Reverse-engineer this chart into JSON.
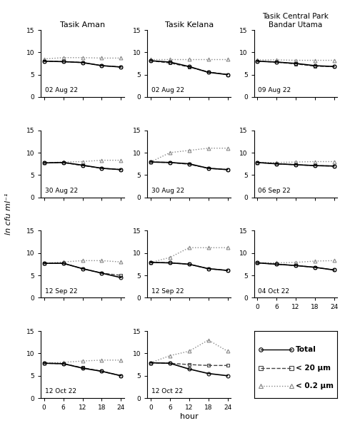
{
  "title_col1": "Tasik Aman",
  "title_col2": "Tasik Kelana",
  "title_col3": "Tasik Central Park\nBandar Utama",
  "ylabel": "ln cfu ml⁻¹",
  "xlabel": "hour",
  "hours": [
    0,
    6,
    12,
    18,
    24
  ],
  "ylim": [
    0,
    15
  ],
  "yticks": [
    0,
    5,
    10,
    15
  ],
  "xticks": [
    0,
    6,
    12,
    18,
    24
  ],
  "panels": [
    {
      "row": 0,
      "col": 0,
      "label": "02 Aug 22",
      "total": [
        8.0,
        7.9,
        7.7,
        7.0,
        6.7
      ],
      "lt20": [
        8.0,
        7.9,
        7.7,
        7.0,
        6.7
      ],
      "lt02": [
        8.5,
        8.8,
        8.8,
        8.7,
        8.7
      ]
    },
    {
      "row": 0,
      "col": 1,
      "label": "02 Aug 22",
      "total": [
        8.1,
        7.8,
        6.8,
        5.5,
        5.0
      ],
      "lt20": [
        8.1,
        7.6,
        6.7,
        5.6,
        5.0
      ],
      "lt02": [
        8.5,
        8.5,
        8.5,
        8.5,
        8.5
      ]
    },
    {
      "row": 0,
      "col": 2,
      "label": "09 Aug 22",
      "total": [
        8.0,
        7.8,
        7.5,
        7.0,
        6.8
      ],
      "lt20": [
        8.0,
        7.8,
        7.4,
        6.9,
        6.8
      ],
      "lt02": [
        8.3,
        8.3,
        8.2,
        8.2,
        8.2
      ]
    },
    {
      "row": 1,
      "col": 0,
      "label": "30 Aug 22",
      "total": [
        7.7,
        7.8,
        7.2,
        6.5,
        6.2
      ],
      "lt20": [
        7.7,
        7.8,
        7.1,
        6.5,
        6.2
      ],
      "lt02": [
        7.7,
        7.9,
        8.0,
        8.3,
        8.3
      ]
    },
    {
      "row": 1,
      "col": 1,
      "label": "30 Aug 22",
      "total": [
        7.9,
        7.8,
        7.5,
        6.5,
        6.2
      ],
      "lt20": [
        7.9,
        7.8,
        7.4,
        6.5,
        6.2
      ],
      "lt02": [
        7.9,
        10.0,
        10.5,
        11.0,
        11.0
      ]
    },
    {
      "row": 1,
      "col": 2,
      "label": "06 Sep 22",
      "total": [
        7.8,
        7.5,
        7.3,
        7.1,
        7.0
      ],
      "lt20": [
        7.8,
        7.5,
        7.3,
        7.1,
        7.0
      ],
      "lt02": [
        7.8,
        7.8,
        7.9,
        8.0,
        8.0
      ]
    },
    {
      "row": 2,
      "col": 0,
      "label": "12 Sep 22",
      "total": [
        7.7,
        7.7,
        6.5,
        5.5,
        4.5
      ],
      "lt20": [
        7.7,
        7.7,
        6.5,
        5.5,
        5.0
      ],
      "lt02": [
        7.7,
        8.0,
        8.3,
        8.3,
        8.0
      ]
    },
    {
      "row": 2,
      "col": 1,
      "label": "12 Sep 22",
      "total": [
        7.9,
        7.8,
        7.5,
        6.5,
        6.1
      ],
      "lt20": [
        7.9,
        7.8,
        7.5,
        6.5,
        6.1
      ],
      "lt02": [
        7.9,
        9.0,
        11.2,
        11.2,
        11.2
      ]
    },
    {
      "row": 2,
      "col": 2,
      "label": "04 Oct 22",
      "total": [
        7.8,
        7.5,
        7.2,
        6.8,
        6.2
      ],
      "lt20": [
        7.8,
        7.5,
        7.2,
        6.8,
        6.2
      ],
      "lt02": [
        7.8,
        7.8,
        7.9,
        8.2,
        8.3
      ]
    },
    {
      "row": 3,
      "col": 0,
      "label": "12 Oct 22",
      "total": [
        7.8,
        7.7,
        6.7,
        6.0,
        5.0
      ],
      "lt20": [
        7.8,
        7.7,
        6.8,
        6.0,
        5.0
      ],
      "lt02": [
        7.8,
        8.0,
        8.3,
        8.5,
        8.5
      ]
    },
    {
      "row": 3,
      "col": 1,
      "label": "12 Oct 22",
      "total": [
        7.9,
        7.8,
        6.5,
        5.5,
        5.0
      ],
      "lt20": [
        7.9,
        7.8,
        7.5,
        7.3,
        7.3
      ],
      "lt02": [
        7.9,
        9.5,
        10.5,
        13.0,
        10.5
      ]
    }
  ],
  "color_total": "#000000",
  "color_lt20": "#444444",
  "color_lt02": "#888888",
  "bg_color": "#ffffff",
  "legend_labels": [
    "Total",
    "< 20 μm",
    "< 0.2 μm"
  ],
  "legend_linestyles": [
    "solid",
    "dashed",
    "dotted"
  ],
  "legend_markers": [
    "o",
    "s",
    "^"
  ]
}
